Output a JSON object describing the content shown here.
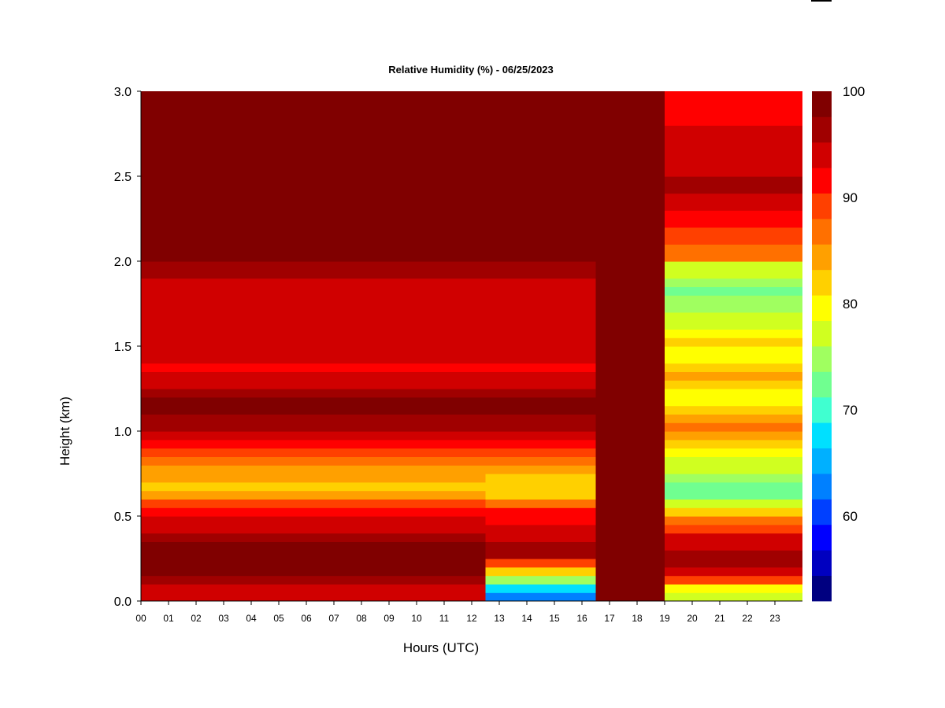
{
  "chart_data": {
    "type": "heatmap",
    "title": "Relative Humidity (%) - 06/25/2023",
    "xlabel": "Hours (UTC)",
    "ylabel": "Height (km)",
    "xlim": [
      0,
      24
    ],
    "ylim": [
      0.0,
      3.0
    ],
    "x_tick_labels": [
      "00",
      "01",
      "02",
      "03",
      "04",
      "05",
      "06",
      "07",
      "08",
      "09",
      "10",
      "11",
      "12",
      "13",
      "14",
      "15",
      "16",
      "17",
      "18",
      "19",
      "20",
      "21",
      "22",
      "23"
    ],
    "y_tick_labels": [
      "0.0",
      "0.5",
      "1.0",
      "1.5",
      "2.0",
      "2.5",
      "3.0"
    ],
    "y_ticks": [
      0.0,
      0.5,
      1.0,
      1.5,
      2.0,
      2.5,
      3.0
    ],
    "colorbar": {
      "min": 52,
      "max": 100,
      "tick_labels": [
        "60",
        "70",
        "80",
        "90",
        "100"
      ],
      "ticks": [
        60,
        70,
        80,
        90,
        100
      ],
      "colors": [
        "#000080",
        "#0000c0",
        "#0000ff",
        "#0040ff",
        "#0080ff",
        "#00b0ff",
        "#00e0ff",
        "#40ffd0",
        "#70ff90",
        "#a0ff60",
        "#d0ff20",
        "#ffff00",
        "#ffd000",
        "#ffa000",
        "#ff7000",
        "#ff4000",
        "#ff0000",
        "#d00000",
        "#a00000",
        "#800000"
      ]
    },
    "x_hours": [
      0,
      0.5,
      1,
      1.5,
      2,
      2.5,
      3,
      3.5,
      4,
      4.5,
      5,
      5.5,
      6,
      6.5,
      7,
      7.5,
      8,
      8.5,
      9,
      9.5,
      10,
      10.5,
      11,
      11.5,
      12,
      12.5,
      13,
      13.5,
      14,
      14.5,
      15,
      15.5,
      16,
      16.5,
      17,
      17.5,
      18,
      18.5,
      19,
      19.5,
      20,
      20.5,
      21,
      21.5,
      22,
      22.5,
      23,
      23.5
    ],
    "y_heights": [
      0.0,
      0.05,
      0.1,
      0.15,
      0.2,
      0.25,
      0.3,
      0.35,
      0.4,
      0.45,
      0.5,
      0.55,
      0.6,
      0.65,
      0.7,
      0.75,
      0.8,
      0.85,
      0.9,
      0.95,
      1.0,
      1.05,
      1.1,
      1.15,
      1.2,
      1.25,
      1.3,
      1.35,
      1.4,
      1.45,
      1.5,
      1.55,
      1.6,
      1.65,
      1.7,
      1.75,
      1.8,
      1.85,
      1.9,
      1.95,
      2.0,
      2.1,
      2.2,
      2.3,
      2.4,
      2.5,
      2.6,
      2.7,
      2.8,
      2.9,
      3.0
    ],
    "humidity_profiles": {
      "morning_0_to_12h": [
        93,
        94,
        97,
        98,
        99,
        99,
        98,
        96,
        94,
        93,
        92,
        88,
        84,
        83,
        84,
        85,
        87,
        90,
        92,
        94,
        96,
        97,
        98,
        98,
        97,
        95,
        93,
        92,
        93,
        94,
        95,
        94,
        93,
        94,
        95,
        95,
        94,
        95,
        96,
        97,
        100,
        100,
        100,
        100,
        100,
        100,
        100,
        100,
        100,
        100,
        100
      ],
      "dry_surface_13_to_16h": [
        62,
        68,
        75,
        82,
        90,
        96,
        97,
        95,
        93,
        92,
        91,
        87,
        83,
        82,
        83,
        85,
        87,
        90,
        92,
        94,
        96,
        97,
        98,
        98,
        97,
        95,
        93,
        92,
        93,
        94,
        95,
        94,
        93,
        94,
        95,
        95,
        94,
        95,
        96,
        97,
        100,
        100,
        100,
        100,
        100,
        100,
        100,
        100,
        100,
        100,
        100
      ],
      "saturated_16_7_to_18_6h": [
        100,
        100,
        100,
        100,
        100,
        100,
        100,
        100,
        100,
        100,
        100,
        100,
        100,
        100,
        100,
        100,
        100,
        100,
        100,
        100,
        100,
        100,
        100,
        100,
        100,
        100,
        100,
        100,
        100,
        100,
        100,
        100,
        100,
        100,
        100,
        100,
        100,
        100,
        100,
        100,
        100,
        100,
        100,
        100,
        100,
        100,
        100,
        100,
        100,
        100,
        100
      ],
      "evening_19_to_24h": [
        76,
        80,
        88,
        95,
        97,
        96,
        95,
        93,
        90,
        86,
        82,
        76,
        73,
        72,
        74,
        76,
        78,
        80,
        82,
        84,
        86,
        84,
        82,
        80,
        80,
        82,
        84,
        82,
        80,
        80,
        82,
        80,
        78,
        76,
        74,
        74,
        73,
        74,
        76,
        78,
        86,
        90,
        92,
        94,
        96,
        95,
        94,
        93,
        92,
        91,
        90
      ]
    }
  }
}
